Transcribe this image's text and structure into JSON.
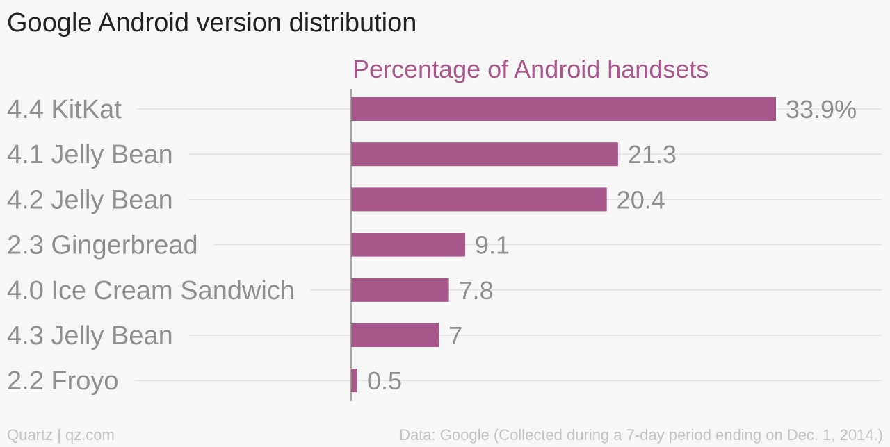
{
  "header": {
    "title": "Google Android version distribution"
  },
  "footer": {
    "credit": "Quartz | qz.com",
    "source": "Data: Google (Collected during a 7-day period ending on Dec. 1, 2014.)"
  },
  "colors": {
    "bar": "#a8578a",
    "series_label": "#a8578a",
    "text_muted": "#8f8f8f",
    "grid": "#e3e3e3",
    "axis": "#888888"
  },
  "chart_data": {
    "type": "bar",
    "orientation": "horizontal",
    "title": "Google Android version distribution",
    "categories": [
      "4.4 KitKat",
      "4.1 Jelly Bean",
      "4.2 Jelly Bean",
      "2.3 Gingerbread",
      "4.0 Ice Cream Sandwich",
      "4.3 Jelly Bean",
      "2.2 Froyo"
    ],
    "series": [
      {
        "name": "Percentage of Android handsets",
        "values": [
          33.9,
          21.3,
          20.4,
          9.1,
          7.8,
          7,
          0.5
        ],
        "labels": [
          "33.9%",
          "21.3",
          "20.4",
          "9.1",
          "7.8",
          "7",
          "0.5"
        ]
      }
    ],
    "xlim": [
      0,
      33.9
    ],
    "grid": true,
    "legend": "top"
  }
}
